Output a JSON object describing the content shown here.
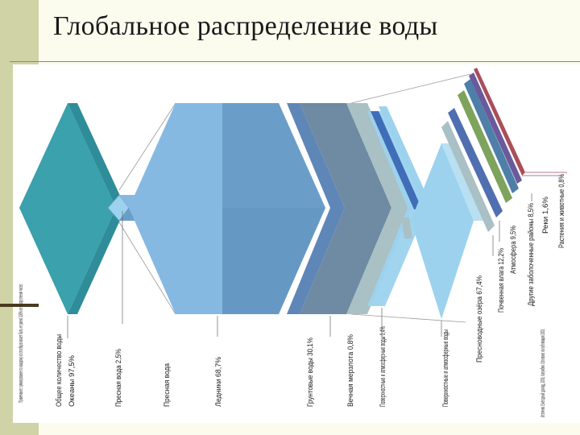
{
  "slide": {
    "title": "Глобальное распределение воды"
  },
  "labels": {
    "side_note": "Примечание: суммирование по каждому из столбцов может быть не равно 100% из-за округления чисел.",
    "total_water": "Общее количество воды",
    "oceans": "Океаны 97,5%",
    "fresh_water": "Пресная вода 2,5%",
    "fresh_water2": "Пресная вода",
    "glaciers": "Ледники 68,7%",
    "groundwater": "Грунтовые воды 30,1%",
    "permafrost": "Вечная мерзлота 0,8%",
    "surface_atm": "Поверхностные и атмосферные воды 0,4%",
    "surface_atm2": "Поверхностные и атмосферные воды",
    "fresh_lakes": "Пресноводные озёра 67,4%",
    "soil_moisture": "Почвенная влага 12,2%",
    "atmosphere": "Атмосфера 9,5%",
    "other_wetlands": "Другие заболоченные районы 8,5%",
    "rivers": "Реки 1,6%",
    "plants_animals": "Растения и животные 0,8%",
    "source": "Источник: Ежегодный доклад, 2006, Колумбия. Основано на публикации 2003."
  },
  "colors": {
    "teal": "#3aa1ad",
    "teal_dark": "#2f8c99",
    "blue_main": "#6a9ec9",
    "blue_light": "#86b9e2",
    "steel": "#6f8aa3",
    "lightblue": "#9cd2ee",
    "grey": "#a9c0c4",
    "thin_blue1": "#5d84c0",
    "thin_green": "#7ea35c",
    "thin_blue2": "#4e7fa8",
    "thin_purple": "#6a5a9c",
    "thin_red": "#a94f5a"
  }
}
